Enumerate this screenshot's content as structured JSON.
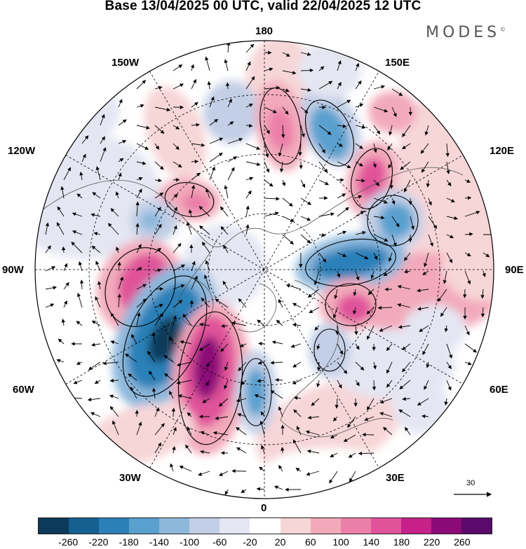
{
  "title": "Base 13/04/2025 00 UTC, valid 22/04/2025 12 UTC",
  "brand": {
    "name": "MODES",
    "mark": "©"
  },
  "longitude_labels": {
    "lon_180": "180",
    "lon_150w": "150W",
    "lon_150e": "150E",
    "lon_120w": "120W",
    "lon_120e": "120E",
    "lon_90w": "90W",
    "lon_90e": "90E",
    "lon_60w": "60W",
    "lon_60e": "60E",
    "lon_30w": "30W",
    "lon_30e": "30E",
    "lon_0": "0"
  },
  "reference_vector": {
    "value": "30"
  },
  "colorbar": {
    "colors": [
      "#0b3a5a",
      "#15608f",
      "#2c80b8",
      "#5aa0cf",
      "#8db8dc",
      "#c3cfe6",
      "#e4e6f2",
      "#ffffff",
      "#f7d6d8",
      "#f2aabb",
      "#ec7fa9",
      "#e0529a",
      "#c52188",
      "#8c0a78",
      "#5a0a6a"
    ],
    "ticks": [
      "-260",
      "-220",
      "-180",
      "-140",
      "-100",
      "-60",
      "-20",
      "20",
      "60",
      "100",
      "140",
      "180",
      "220",
      "260"
    ]
  },
  "map_features": {
    "anomaly_fill": "geopotential height anomaly",
    "overlays": [
      "coastlines",
      "latitude circles",
      "meridians",
      "wind vectors",
      "contours"
    ]
  }
}
